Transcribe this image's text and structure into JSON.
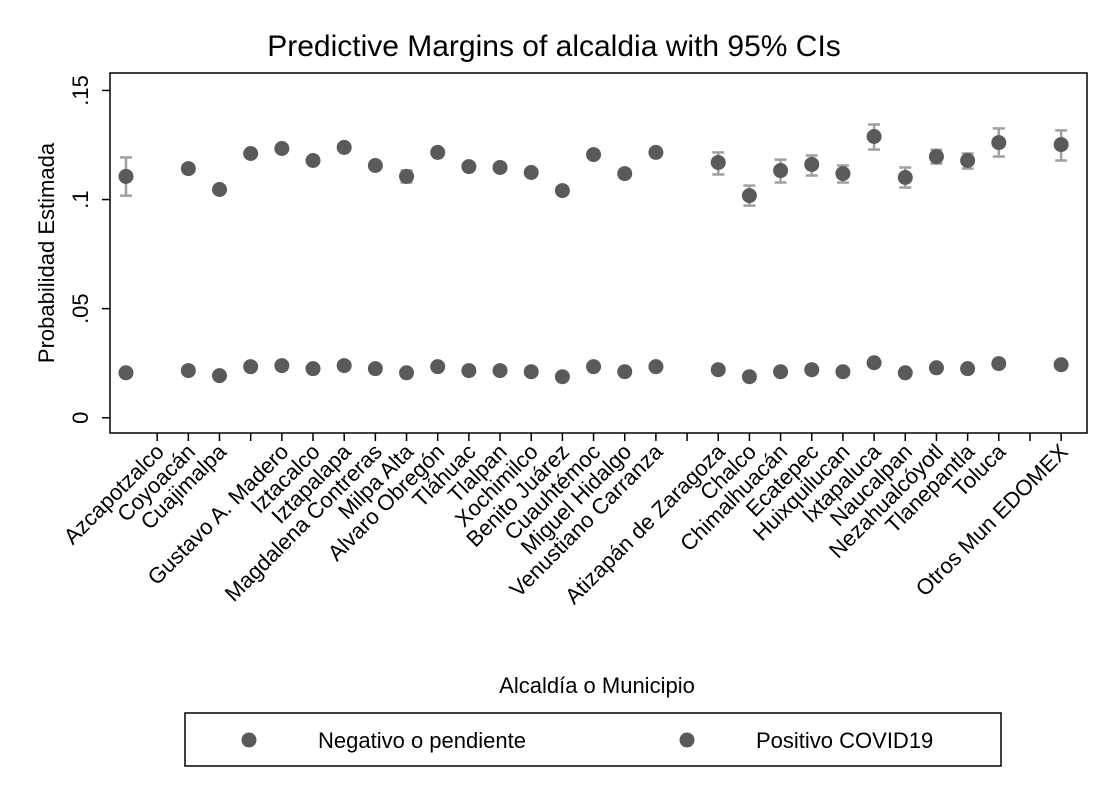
{
  "chart_data": {
    "type": "scatter",
    "title": "Predictive Margins of alcaldia with 95% CIs",
    "x_label": "Alcaldía o Municipio",
    "y_label": "Probabilidad Estimada",
    "xlim": [
      -0.513,
      30.83
    ],
    "ylim": [
      -0.007,
      0.158
    ],
    "yticks": [
      0,
      {
        "value": 0.05,
        "label": ".05"
      },
      {
        "value": 0.1,
        "label": ".1"
      },
      {
        "value": 0.15,
        "label": ".15"
      }
    ],
    "xticks": [
      {
        "value": 1,
        "label": "Azcapotzalco"
      },
      {
        "value": 2,
        "label": "Coyoacán"
      },
      {
        "value": 3,
        "label": "Cuajimalpa"
      },
      {
        "value": 4,
        "label": null
      },
      {
        "value": 5,
        "label": "Gustavo A. Madero"
      },
      {
        "value": 6,
        "label": "Iztacalco"
      },
      {
        "value": 7,
        "label": "Iztapalapa"
      },
      {
        "value": 8,
        "label": "Magdalena Contreras"
      },
      {
        "value": 9,
        "label": "Milpa Alta"
      },
      {
        "value": 10,
        "label": "Alvaro Obregón"
      },
      {
        "value": 11,
        "label": "Tláhuac"
      },
      {
        "value": 12,
        "label": "Tlalpan"
      },
      {
        "value": 13,
        "label": "Xochimilco"
      },
      {
        "value": 14,
        "label": "Benito Juárez"
      },
      {
        "value": 15,
        "label": "Cuauhtémoc"
      },
      {
        "value": 16,
        "label": "Miguel Hidalgo"
      },
      {
        "value": 17,
        "label": "Venustiano Carranza"
      },
      {
        "value": 18,
        "label": null
      },
      {
        "value": 19,
        "label": "Atizapán de Zaragoza"
      },
      {
        "value": 20,
        "label": "Chalco"
      },
      {
        "value": 21,
        "label": "Chimalhuacán"
      },
      {
        "value": 22,
        "label": "Ecatepec"
      },
      {
        "value": 23,
        "label": "Huixquilucan"
      },
      {
        "value": 24,
        "label": "Ixtapaluca"
      },
      {
        "value": 25,
        "label": "Naucalpan"
      },
      {
        "value": 26,
        "label": "Nezahualcóyotl"
      },
      {
        "value": 27,
        "label": "Tlanepantla"
      },
      {
        "value": 28,
        "label": "Toluca"
      },
      {
        "value": 29,
        "label": null
      },
      {
        "value": 30,
        "label": "Otros Mun EDOMEX"
      }
    ],
    "x": [
      0,
      2,
      3,
      4,
      5,
      6,
      7,
      8,
      9,
      10,
      11,
      12,
      13,
      14,
      15,
      16,
      17,
      19,
      20,
      21,
      22,
      23,
      24,
      25,
      26,
      27,
      28,
      30
    ],
    "marker_color": "#5a5a5a",
    "ci_color": "#a0a0a0",
    "series": [
      {
        "name": "Negativo o pendiente",
        "values": [
          0.0206,
          0.0216,
          0.0193,
          0.0234,
          0.0239,
          0.0225,
          0.0239,
          0.0225,
          0.0206,
          0.0234,
          0.0216,
          0.0216,
          0.0211,
          0.0188,
          0.0234,
          0.0211,
          0.0234,
          0.022,
          0.0188,
          0.0211,
          0.022,
          0.0211,
          0.0252,
          0.0206,
          0.0229,
          0.0225,
          0.0248,
          0.0243
        ],
        "lower": [
          0.0192,
          0.0206,
          0.0183,
          0.0224,
          0.0229,
          0.0215,
          0.0229,
          0.0213,
          0.0192,
          0.0224,
          0.0206,
          0.0206,
          0.0201,
          0.0178,
          0.0224,
          0.0201,
          0.0224,
          0.0208,
          0.0174,
          0.0199,
          0.0208,
          0.0199,
          0.0238,
          0.0194,
          0.0217,
          0.0213,
          0.0232,
          0.0229
        ],
        "upper": [
          0.022,
          0.0226,
          0.0203,
          0.0244,
          0.0249,
          0.0235,
          0.0249,
          0.0237,
          0.022,
          0.0244,
          0.0226,
          0.0226,
          0.0221,
          0.0198,
          0.0244,
          0.0221,
          0.0244,
          0.0232,
          0.0202,
          0.0223,
          0.0232,
          0.0223,
          0.0266,
          0.0218,
          0.0241,
          0.0237,
          0.0264,
          0.0257
        ]
      },
      {
        "name": "Positivo COVID19",
        "values": [
          0.1106,
          0.1142,
          0.1046,
          0.1211,
          0.1234,
          0.1179,
          0.1239,
          0.1156,
          0.1106,
          0.1216,
          0.1151,
          0.1147,
          0.1124,
          0.1041,
          0.1206,
          0.1119,
          0.1216,
          0.117,
          0.1018,
          0.1133,
          0.1161,
          0.1119,
          0.1289,
          0.1101,
          0.1197,
          0.1179,
          0.1261,
          0.1252
        ],
        "lower": [
          0.1018,
          0.1127,
          0.1034,
          0.1198,
          0.122,
          0.1166,
          0.1226,
          0.1142,
          0.1078,
          0.1203,
          0.1138,
          0.1134,
          0.111,
          0.1029,
          0.1192,
          0.1104,
          0.1202,
          0.1115,
          0.0972,
          0.1078,
          0.111,
          0.1078,
          0.1229,
          0.1055,
          0.1165,
          0.1142,
          0.1197,
          0.1179
        ],
        "upper": [
          0.1193,
          0.1157,
          0.1058,
          0.1224,
          0.1248,
          0.1192,
          0.1252,
          0.117,
          0.1133,
          0.1229,
          0.1164,
          0.116,
          0.1138,
          0.1053,
          0.122,
          0.1134,
          0.123,
          0.1216,
          0.1064,
          0.1183,
          0.1202,
          0.1156,
          0.1344,
          0.1147,
          0.1228,
          0.1211,
          0.1326,
          0.1317
        ]
      }
    ]
  }
}
